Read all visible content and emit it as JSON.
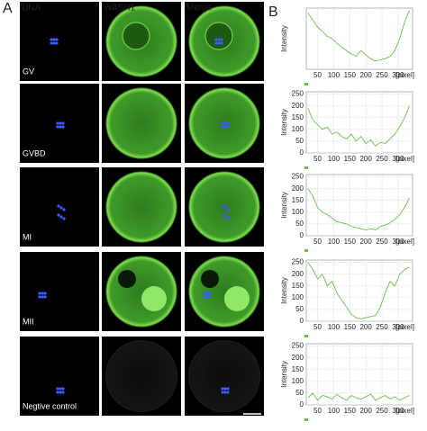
{
  "panels": {
    "a": "A",
    "b": "B"
  },
  "columns": [
    "DNA",
    "WASH1",
    "Merge"
  ],
  "rows": [
    "GV",
    "GVBD",
    "MI",
    "MII",
    "Negtive control"
  ],
  "chart_data": [
    {
      "type": "line",
      "ylabel": "Intensity",
      "xunit": "[pixel]",
      "color": "#6cc04a",
      "x": [
        20,
        35,
        50,
        65,
        80,
        95,
        110,
        125,
        140,
        155,
        170,
        185,
        200,
        215,
        230,
        245,
        260,
        275,
        290,
        305,
        320,
        335
      ],
      "values": [
        240,
        210,
        180,
        160,
        140,
        130,
        110,
        95,
        80,
        65,
        55,
        80,
        60,
        45,
        35,
        40,
        45,
        55,
        80,
        130,
        200,
        250
      ],
      "xlim": [
        15,
        345
      ],
      "xticks": [
        50,
        100,
        150,
        200,
        250,
        300
      ],
      "ylim": [
        0,
        260
      ]
    },
    {
      "type": "line",
      "ylabel": "Intensity",
      "xunit": "[pixel]",
      "color": "#6cc04a",
      "x": [
        20,
        35,
        50,
        65,
        80,
        95,
        110,
        125,
        140,
        155,
        170,
        185,
        200,
        215,
        230,
        245,
        260,
        275,
        290,
        305,
        320,
        335
      ],
      "values": [
        190,
        140,
        120,
        100,
        110,
        80,
        90,
        70,
        60,
        80,
        50,
        70,
        40,
        55,
        30,
        45,
        40,
        60,
        80,
        110,
        150,
        200
      ],
      "xlim": [
        15,
        345
      ],
      "xticks": [
        50,
        100,
        150,
        200,
        250,
        300
      ],
      "ylim": [
        0,
        260
      ],
      "yticks": [
        0,
        50,
        100,
        150,
        200,
        250
      ]
    },
    {
      "type": "line",
      "ylabel": "Intensity",
      "xunit": "[pixel]",
      "color": "#6cc04a",
      "x": [
        20,
        35,
        50,
        65,
        80,
        95,
        110,
        125,
        140,
        155,
        170,
        185,
        200,
        215,
        230,
        245,
        260,
        275,
        290,
        305,
        320,
        335
      ],
      "values": [
        200,
        170,
        120,
        100,
        90,
        75,
        60,
        55,
        50,
        40,
        35,
        30,
        25,
        30,
        25,
        40,
        45,
        55,
        70,
        90,
        120,
        160
      ],
      "xlim": [
        15,
        345
      ],
      "xticks": [
        50,
        100,
        150,
        200,
        250,
        300
      ],
      "ylim": [
        0,
        260
      ],
      "yticks": [
        0,
        50,
        100,
        150,
        200,
        250
      ]
    },
    {
      "type": "line",
      "ylabel": "Intensity",
      "xunit": "[pixel]",
      "color": "#6cc04a",
      "x": [
        20,
        35,
        50,
        65,
        80,
        95,
        110,
        125,
        140,
        155,
        170,
        185,
        200,
        215,
        230,
        245,
        260,
        275,
        290,
        305,
        320,
        335
      ],
      "values": [
        250,
        220,
        180,
        200,
        150,
        170,
        120,
        90,
        60,
        30,
        15,
        10,
        15,
        20,
        25,
        60,
        120,
        170,
        150,
        200,
        220,
        230
      ],
      "xlim": [
        15,
        345
      ],
      "xticks": [
        50,
        100,
        150,
        200,
        250,
        300
      ],
      "ylim": [
        0,
        260
      ],
      "yticks": [
        0,
        50,
        100,
        150,
        200,
        250
      ]
    },
    {
      "type": "line",
      "ylabel": "Intensity",
      "xunit": "[pixel]",
      "color": "#6cc04a",
      "x": [
        20,
        35,
        50,
        65,
        80,
        95,
        110,
        125,
        140,
        155,
        170,
        185,
        200,
        215,
        230,
        245,
        260,
        275,
        290,
        305,
        320,
        335
      ],
      "values": [
        30,
        50,
        20,
        40,
        35,
        25,
        45,
        30,
        20,
        40,
        30,
        25,
        35,
        45,
        20,
        30,
        40,
        25,
        35,
        20,
        30,
        40
      ],
      "xlim": [
        15,
        345
      ],
      "xticks": [
        50,
        100,
        150,
        200,
        250,
        300
      ],
      "ylim": [
        0,
        260
      ],
      "yticks": [
        0,
        50,
        100,
        150,
        200,
        250
      ]
    }
  ]
}
